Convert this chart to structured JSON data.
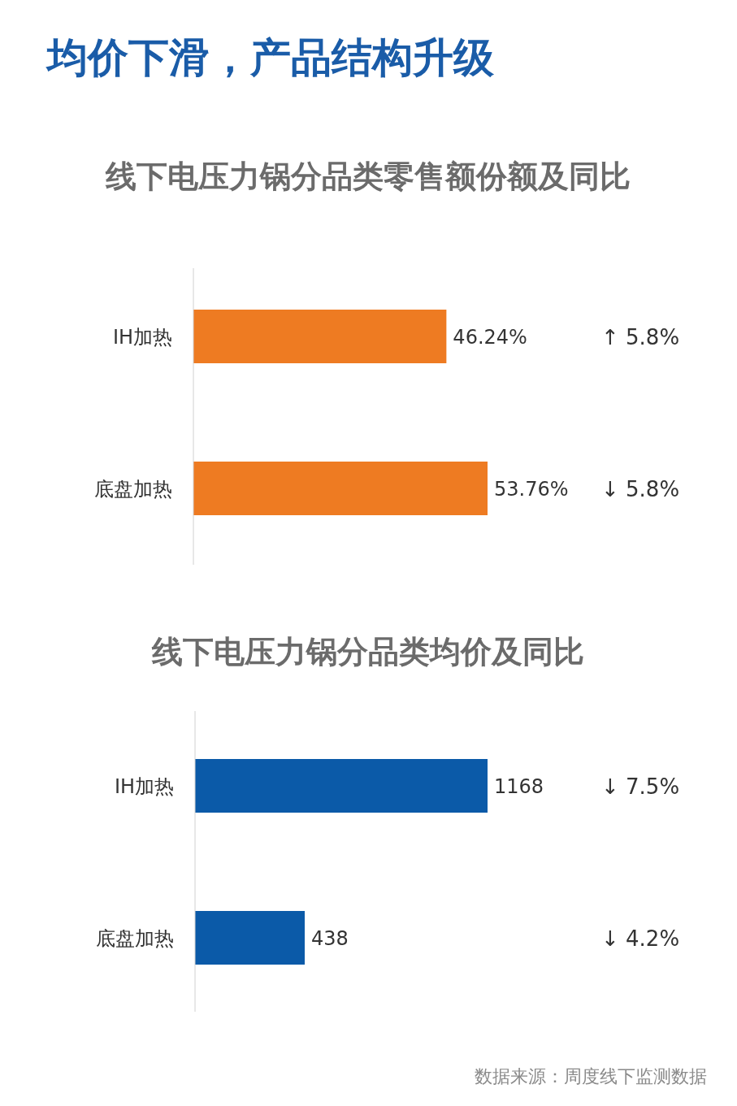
{
  "chart_data": [
    {
      "type": "bar",
      "orientation": "horizontal",
      "title": "均价下滑，产品结构升级",
      "subtitle": "线下电压力锅分品类零售额份额及同比",
      "categories": [
        "IH加热",
        "底盘加热"
      ],
      "values": [
        46.24,
        53.76
      ],
      "value_labels": [
        "46.24%",
        "53.76%"
      ],
      "color": "#ee7b22",
      "annotations": [
        "↑ 5.8%",
        "↓ 5.8%"
      ]
    },
    {
      "type": "bar",
      "orientation": "horizontal",
      "title": "线下电压力锅分品类均价及同比",
      "categories": [
        "IH加热",
        "底盘加热"
      ],
      "values": [
        1168,
        438
      ],
      "data_labels": true,
      "color": "#0b5aa8",
      "annotations": [
        "↓ 7.5%",
        "↓ 4.2%",
        "数据来源：周度线下监测数据"
      ]
    }
  ]
}
